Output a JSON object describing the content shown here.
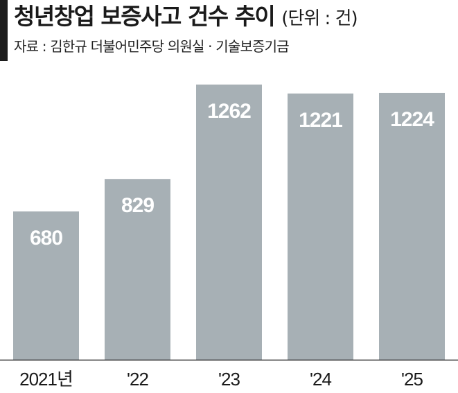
{
  "header": {
    "title": "청년창업 보증사고 건수 추이",
    "unit": "(단위 : 건)",
    "source": "자료 : 김한규 더불어민주당 의원실 · 기술보증기금"
  },
  "colors": {
    "bar": "#a7b0b5",
    "axis": "#333333",
    "accent": "#1c1c1c"
  },
  "chart_data": {
    "type": "bar",
    "categories": [
      "2021년",
      "'22",
      "'23",
      "'24",
      "'25"
    ],
    "series": [
      {
        "values": [
          680,
          829,
          1262,
          1221,
          1224
        ]
      }
    ],
    "data_labels": [
      "680",
      "829",
      "1262",
      "1221",
      "1224"
    ],
    "title": "청년창업 보증사고 건수 추이",
    "unit": "(단위 : 건)",
    "xlabel": "",
    "ylabel": "",
    "ylim": [
      0,
      1300
    ],
    "grid": false,
    "legend": "none"
  }
}
